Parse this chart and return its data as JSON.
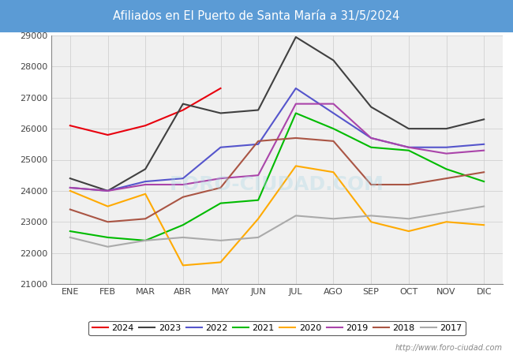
{
  "title": "Afiliados en El Puerto de Santa María a 31/5/2024",
  "title_bg_color": "#5b9bd5",
  "title_text_color": "white",
  "ylim": [
    21000,
    29000
  ],
  "yticks": [
    21000,
    22000,
    23000,
    24000,
    25000,
    26000,
    27000,
    28000,
    29000
  ],
  "months": [
    "ENE",
    "FEB",
    "MAR",
    "ABR",
    "MAY",
    "JUN",
    "JUL",
    "AGO",
    "SEP",
    "OCT",
    "NOV",
    "DIC"
  ],
  "watermark": "http://www.foro-ciudad.com",
  "series": {
    "2024": {
      "color": "#e8000d",
      "data": [
        26100,
        25800,
        26100,
        26600,
        27300,
        null,
        null,
        null,
        null,
        null,
        null,
        null
      ]
    },
    "2023": {
      "color": "#404040",
      "data": [
        24400,
        24000,
        24700,
        26800,
        26500,
        26600,
        28950,
        28200,
        26700,
        26000,
        26000,
        26300
      ]
    },
    "2022": {
      "color": "#5555cc",
      "data": [
        24100,
        24000,
        24300,
        24400,
        25400,
        25500,
        27300,
        26500,
        25700,
        25400,
        25400,
        25500
      ]
    },
    "2021": {
      "color": "#00bb00",
      "data": [
        22700,
        22500,
        22400,
        22900,
        23600,
        23700,
        26500,
        26000,
        25400,
        25300,
        24700,
        24300
      ]
    },
    "2020": {
      "color": "#ffaa00",
      "data": [
        24000,
        23500,
        23900,
        21600,
        21700,
        23100,
        24800,
        24600,
        23000,
        22700,
        23000,
        22900
      ]
    },
    "2019": {
      "color": "#aa44aa",
      "data": [
        24100,
        24000,
        24200,
        24200,
        24400,
        24500,
        26800,
        26800,
        25700,
        25400,
        25200,
        25300
      ]
    },
    "2018": {
      "color": "#aa5544",
      "data": [
        23400,
        23000,
        23100,
        23800,
        24100,
        25600,
        25700,
        25600,
        24200,
        24200,
        24400,
        24600
      ]
    },
    "2017": {
      "color": "#aaaaaa",
      "data": [
        22500,
        22200,
        22400,
        22500,
        22400,
        22500,
        23200,
        23100,
        23200,
        23100,
        23300,
        23500
      ]
    }
  }
}
